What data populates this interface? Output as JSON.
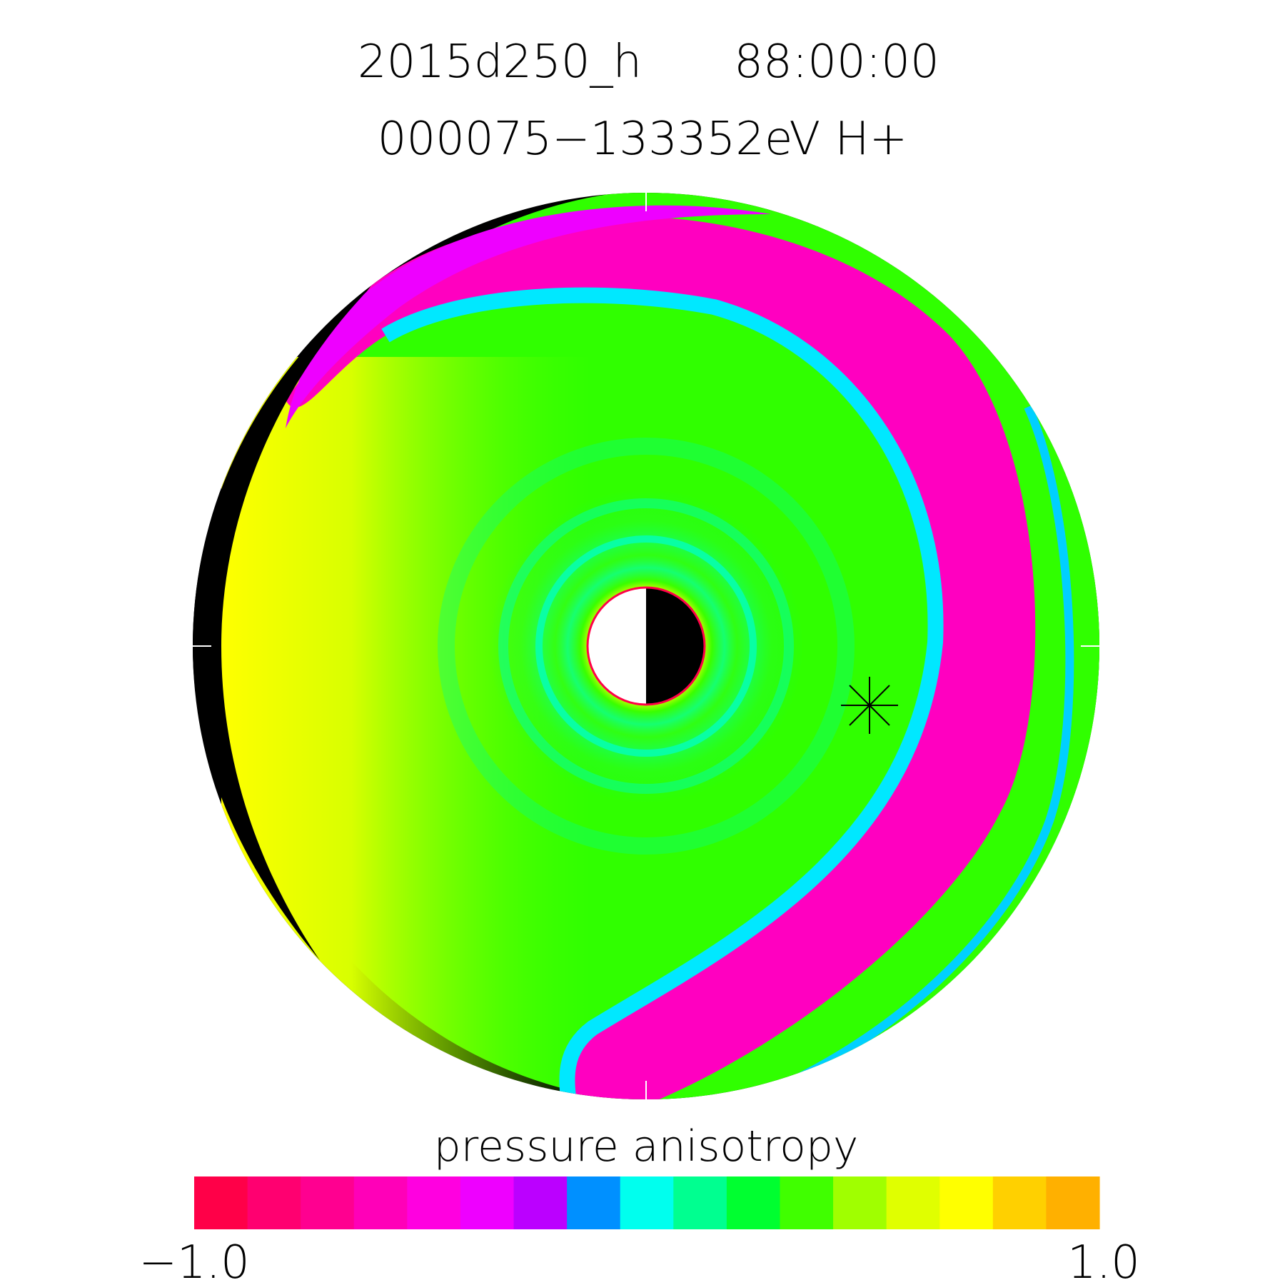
{
  "chart_data": {
    "type": "heatmap",
    "title_line1": "2015d250_h",
    "title_time": "88:00:00",
    "title_line2": "000075−133352eV H+",
    "colorbar": {
      "label": "pressure anisotropy",
      "min_label": "−1.0",
      "max_label": "1.0",
      "range": [
        -1.0,
        1.0
      ],
      "colors": [
        "#ff0048",
        "#ff0070",
        "#ff0090",
        "#ff00b8",
        "#ff00e0",
        "#ee00ff",
        "#bb00ff",
        "#0090ff",
        "#00ffee",
        "#00ff90",
        "#00ff30",
        "#40ff00",
        "#a0ff00",
        "#e0ff00",
        "#ffff00",
        "#ffd000",
        "#ffb000"
      ]
    },
    "plot": {
      "projection": "polar equatorial plane",
      "marker": "asterisk",
      "night_side_shaded": true
    }
  }
}
